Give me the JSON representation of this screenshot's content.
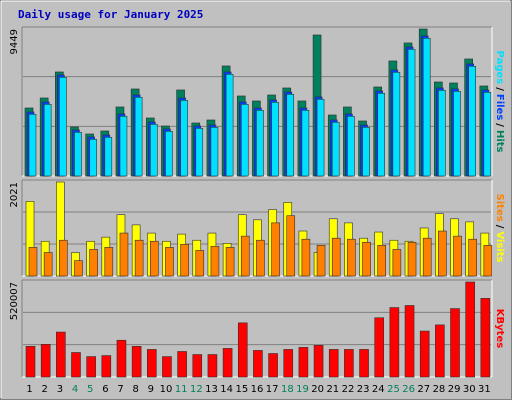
{
  "title": "Daily usage for January 2025",
  "title_color": "#0000c0",
  "legend_separator": "/",
  "chart_data": [
    {
      "type": "bar",
      "series": [
        {
          "name": "Hits",
          "color": "#00805c",
          "values": [
            4372,
            5015,
            6687,
            3151,
            2701,
            2894,
            4437,
            5594,
            3729,
            3215,
            5530,
            3408,
            3601,
            7073,
            5144,
            4823,
            5208,
            5658,
            4823,
            9066,
            3922,
            4437,
            3537,
            5723,
            7395,
            8552,
            9449,
            6044,
            5980,
            7523,
            5787
          ]
        },
        {
          "name": "Files",
          "color": "#0040ff",
          "values": [
            4115,
            4758,
            6494,
            2958,
            2508,
            2636,
            3987,
            5208,
            3472,
            3022,
            5015,
            3215,
            3279,
            6687,
            4758,
            4372,
            4887,
            5401,
            4372,
            5080,
            3601,
            3987,
            3279,
            5466,
            6816,
            8295,
            9002,
            5658,
            5594,
            7202,
            5530
          ]
        },
        {
          "name": "Pages",
          "color": "#00e0ff",
          "values": [
            3965,
            4608,
            6344,
            2808,
            2358,
            2486,
            3837,
            5058,
            3322,
            2872,
            4865,
            3065,
            3129,
            6537,
            4608,
            4222,
            4737,
            5251,
            4222,
            4930,
            3451,
            3837,
            3129,
            5316,
            6666,
            8145,
            8852,
            5508,
            5444,
            7052,
            5380
          ]
        }
      ],
      "ylim": [
        0,
        9449
      ],
      "yticks": [
        9449
      ]
    },
    {
      "type": "bar",
      "series": [
        {
          "name": "Visits",
          "color": "#ffff00",
          "values": [
            1604,
            747,
            2021,
            505,
            747,
            835,
            1318,
            1099,
            923,
            747,
            901,
            769,
            923,
            703,
            1318,
            1208,
            1428,
            1582,
            967,
            505,
            1230,
            1142,
            813,
            945,
            769,
            747,
            1033,
            1340,
            1230,
            1164,
            923
          ]
        },
        {
          "name": "Sites",
          "color": "#ff8000",
          "values": [
            615,
            505,
            769,
            330,
            571,
            615,
            923,
            769,
            747,
            615,
            681,
            549,
            637,
            615,
            857,
            769,
            1142,
            1296,
            791,
            659,
            813,
            791,
            725,
            659,
            571,
            725,
            813,
            967,
            857,
            791,
            659
          ]
        }
      ],
      "ylim": [
        0,
        2021
      ],
      "yticks": [
        2021
      ]
    },
    {
      "type": "bar",
      "categories": [
        1,
        2,
        3,
        4,
        5,
        6,
        7,
        8,
        9,
        10,
        11,
        12,
        13,
        14,
        15,
        16,
        17,
        18,
        19,
        20,
        21,
        22,
        23,
        24,
        25,
        26,
        27,
        28,
        29,
        30,
        31
      ],
      "category_label_colors": [
        "#000",
        "#000",
        "#000",
        "#00805c",
        "#00805c",
        "#000",
        "#000",
        "#000",
        "#000",
        "#000",
        "#00805c",
        "#00805c",
        "#000",
        "#000",
        "#000",
        "#000",
        "#000",
        "#00805c",
        "#00805c",
        "#000",
        "#000",
        "#000",
        "#000",
        "#000",
        "#00805c",
        "#00805c",
        "#000",
        "#000",
        "#000",
        "#000",
        "#000"
      ],
      "series": [
        {
          "name": "KBytes",
          "color": "#ff0000",
          "values": [
            167730,
            178912,
            246004,
            134184,
            111820,
            117411,
            201276,
            167730,
            150957,
            111820,
            139775,
            123002,
            123002,
            156548,
            296323,
            145366,
            128593,
            150957,
            162139,
            173321,
            150957,
            150957,
            150957,
            324278,
            380188,
            391370,
            251595,
            285141,
            374597,
            520007,
            430507
          ]
        }
      ],
      "ylim": [
        0,
        520007
      ],
      "yticks": [
        520007
      ]
    }
  ]
}
